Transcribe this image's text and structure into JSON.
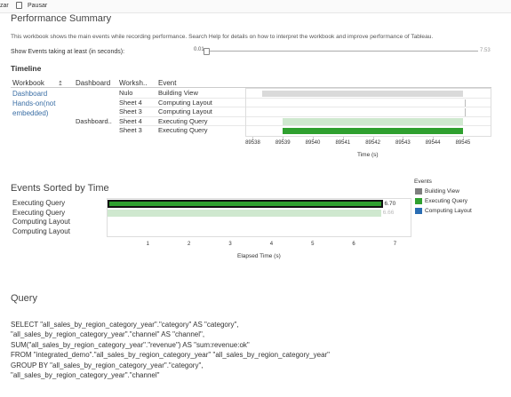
{
  "toolbar": {
    "left_label": "zar",
    "pause_label": "Pausar"
  },
  "header": {
    "title": "Performance Summary",
    "description": "This workbook shows the main events while recording performance. Search Help for details on how to interpret the workbook and improve performance of Tableau.",
    "filter_label": "Show Events taking at least (in seconds):",
    "slider_min": "0.01",
    "slider_max": "7.53"
  },
  "timeline": {
    "title": "Timeline",
    "columns": [
      "Workbook",
      "Dashboard",
      "Worksh..",
      "Event"
    ],
    "workbook_link": [
      "Dashboard",
      "Hands-on(not",
      "embedded)"
    ],
    "rows": [
      {
        "dashboard": "",
        "worksheet": "Nulo",
        "event": "Building View",
        "start": 89538.3,
        "end": 89545.0
      },
      {
        "dashboard": "",
        "worksheet": "Sheet 4",
        "event": "Computing Layout",
        "start": 89545.05,
        "end": 89545.06
      },
      {
        "dashboard": "",
        "worksheet": "Sheet 3",
        "event": "Computing Layout",
        "start": 89545.05,
        "end": 89545.06
      },
      {
        "dashboard": "Dashboard..",
        "worksheet": "Sheet 4",
        "event": "Executing Query",
        "start": 89539.0,
        "end": 89545.0
      },
      {
        "dashboard": "",
        "worksheet": "Sheet 3",
        "event": "Executing Query",
        "start": 89539.0,
        "end": 89545.0
      }
    ],
    "x_ticks": [
      "89538",
      "89539",
      "89540",
      "89541",
      "89542",
      "89543",
      "89544",
      "89545"
    ],
    "x_range": [
      89537.75,
      89545.95
    ],
    "x_title": "Time (s)"
  },
  "events": {
    "title": "Events Sorted by Time",
    "rows": [
      {
        "label": "Executing Query",
        "value": 6.7,
        "value_label": "6.70",
        "color": "#2fa02f",
        "selected": true
      },
      {
        "label": "Executing Query",
        "value": 6.66,
        "value_label": "6.66",
        "color": "#cfe8cf",
        "selected": false
      },
      {
        "label": "Computing Layout",
        "value": 0.0,
        "value_label": "",
        "color": "#2a6db3",
        "selected": false
      },
      {
        "label": "Computing Layout",
        "value": 0.0,
        "value_label": "",
        "color": "#2a6db3",
        "selected": false
      }
    ],
    "x_ticks": [
      "1",
      "2",
      "3",
      "4",
      "5",
      "6",
      "7"
    ],
    "x_range": [
      0,
      7.4
    ],
    "x_title": "Elapsed Time (s)"
  },
  "legend": {
    "title": "Events",
    "items": [
      {
        "label": "Building View",
        "color": "#7f7f7f"
      },
      {
        "label": "Executing Query",
        "color": "#2fa02f"
      },
      {
        "label": "Computing Layout",
        "color": "#2a6db3"
      }
    ]
  },
  "query": {
    "title": "Query",
    "lines": [
      "SELECT \"all_sales_by_region_category_year\".\"category\" AS \"category\",",
      "  \"all_sales_by_region_category_year\".\"channel\" AS \"channel\",",
      "  SUM(\"all_sales_by_region_category_year\".\"revenue\") AS \"sum:revenue:ok\"",
      "FROM \"integrated_demo\".\"all_sales_by_region_category_year\" \"all_sales_by_region_category_year\"",
      "GROUP BY \"all_sales_by_region_category_year\".\"category\",",
      "  \"all_sales_by_region_category_year\".\"channel\""
    ]
  }
}
